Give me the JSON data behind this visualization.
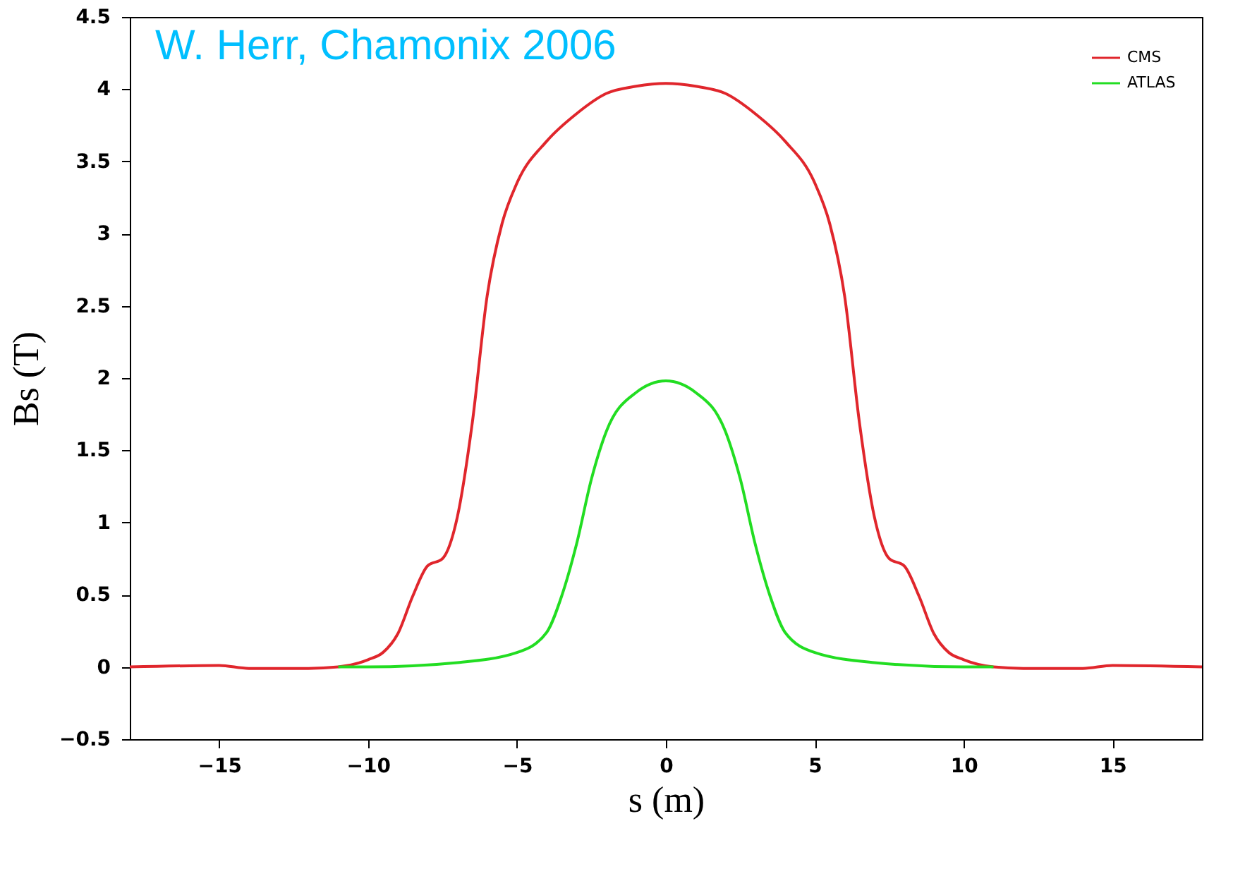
{
  "chart_data": {
    "type": "line",
    "xlabel": "s (m)",
    "ylabel": "Bs (T)",
    "annotations": [
      "W. Herr, Chamonix 2006"
    ],
    "xlim": [
      -18,
      18
    ],
    "ylim": [
      -0.5,
      4.5
    ],
    "xticks": [
      -15,
      -10,
      -5,
      0,
      5,
      10,
      15
    ],
    "yticks": [
      -0.5,
      0,
      0.5,
      1,
      1.5,
      2,
      2.5,
      3,
      3.5,
      4,
      4.5
    ],
    "grid": false,
    "legend": "top right",
    "marker": "none",
    "line_style": "solid",
    "series": [
      {
        "name": "CMS",
        "color": "#e0262c",
        "x": [
          -18,
          -15,
          -14,
          -12,
          -11,
          -10,
          -9.5,
          -9,
          -8.5,
          -8,
          -7.5,
          -7,
          -6.5,
          -6,
          -5.5,
          -5,
          -4,
          -3,
          -2,
          -1,
          0,
          1,
          2,
          3,
          4,
          5,
          5.5,
          6,
          6.5,
          7,
          7.5,
          8,
          8.5,
          9,
          9.5,
          10,
          11,
          12,
          14,
          15,
          18
        ],
        "values": [
          0,
          0.01,
          -0.01,
          -0.01,
          0,
          0.05,
          0.1,
          0.23,
          0.49,
          0.7,
          0.75,
          1.04,
          1.69,
          2.57,
          3.07,
          3.35,
          3.64,
          3.83,
          3.97,
          4.02,
          4.04,
          4.02,
          3.97,
          3.83,
          3.64,
          3.35,
          3.07,
          2.57,
          1.69,
          1.04,
          0.75,
          0.7,
          0.49,
          0.23,
          0.1,
          0.05,
          0,
          -0.01,
          -0.01,
          0.01,
          0
        ]
      },
      {
        "name": "ATLAS",
        "color": "#22dd22",
        "x": [
          -11,
          -10,
          -7,
          -5,
          -4,
          -3.5,
          -3,
          -2.5,
          -2,
          -1,
          0,
          1,
          2,
          2.5,
          3,
          3.5,
          4,
          5,
          7,
          10,
          11
        ],
        "values": [
          0,
          0,
          0.03,
          0.1,
          0.24,
          0.49,
          0.85,
          1.3,
          1.63,
          1.9,
          1.98,
          1.9,
          1.63,
          1.3,
          0.85,
          0.49,
          0.24,
          0.1,
          0.03,
          0,
          0
        ]
      }
    ]
  }
}
